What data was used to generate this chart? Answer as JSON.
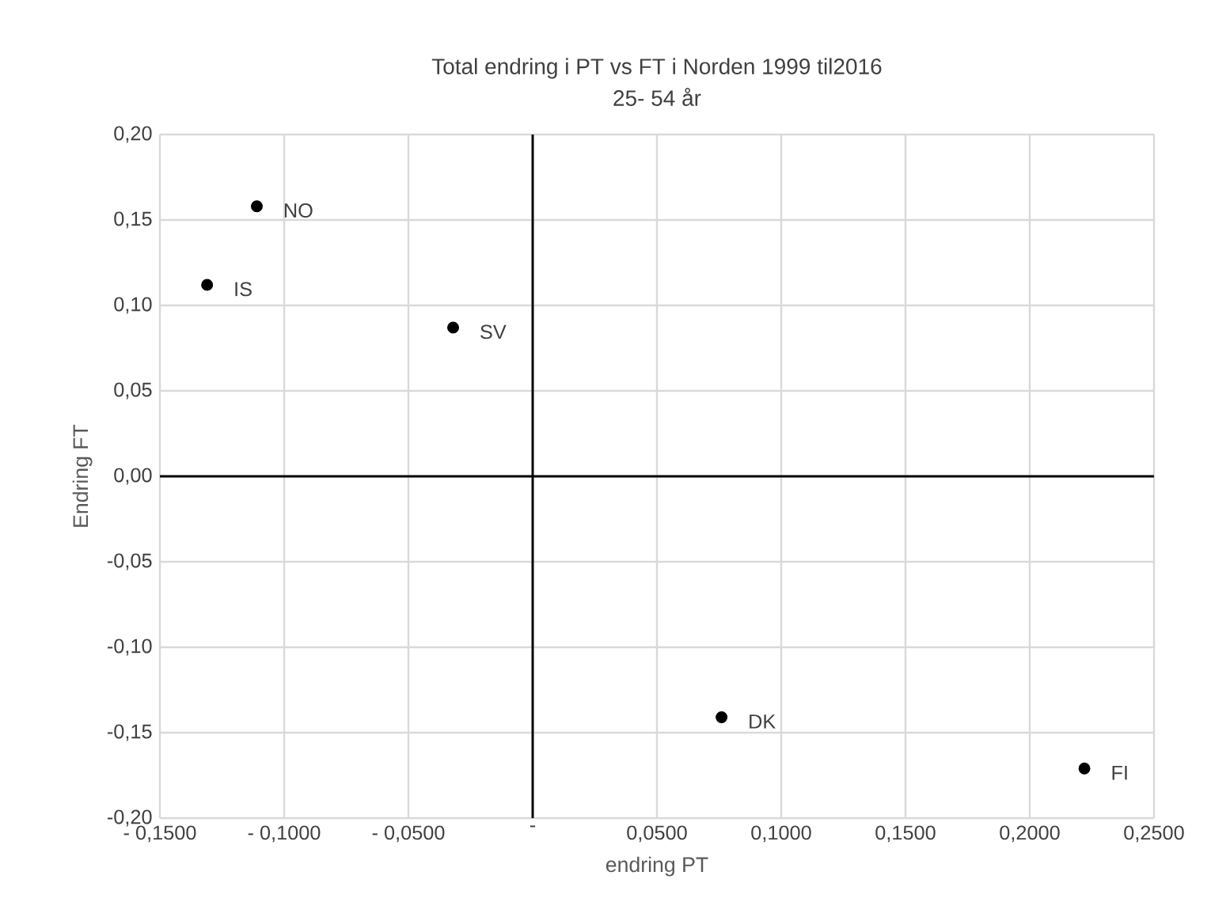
{
  "chart_data": {
    "type": "scatter",
    "title": "Total endring i PT vs FT i Norden 1999 til2016",
    "subtitle": "25- 54 år",
    "xlabel": "endring PT",
    "ylabel": "Endring FT",
    "x": [
      -0.111,
      -0.131,
      -0.032,
      0.076,
      0.222
    ],
    "values": [
      0.158,
      0.112,
      0.087,
      -0.141,
      -0.171
    ],
    "color": "#000000",
    "marker": "circle",
    "grid": true,
    "xlim": [
      -0.15,
      0.25
    ],
    "ylim": [
      -0.2,
      0.2
    ],
    "xticks": [
      {
        "value": -0.15,
        "label": "- 0,1500"
      },
      {
        "value": -0.1,
        "label": "- 0,1000"
      },
      {
        "value": -0.05,
        "label": "- 0,0500"
      },
      {
        "value": 0,
        "label": "-"
      },
      {
        "value": 0.05,
        "label": "0,0500"
      },
      {
        "value": 0.1,
        "label": "0,1000"
      },
      {
        "value": 0.15,
        "label": "0,1500"
      },
      {
        "value": 0.2,
        "label": "0,2000"
      },
      {
        "value": 0.25,
        "label": "0,2500"
      }
    ],
    "yticks": [
      {
        "value": -0.2,
        "label": "-0,20"
      },
      {
        "value": -0.15,
        "label": "-0,15"
      },
      {
        "value": -0.1,
        "label": "-0,10"
      },
      {
        "value": -0.05,
        "label": "-0,05"
      },
      {
        "value": 0,
        "label": "0,00"
      },
      {
        "value": 0.05,
        "label": "0,05"
      },
      {
        "value": 0.1,
        "label": "0,10"
      },
      {
        "value": 0.15,
        "label": "0,15"
      },
      {
        "value": 0.2,
        "label": "0,20"
      }
    ],
    "annotations": [
      {
        "text": "NO",
        "x": -0.111,
        "y": 0.158
      },
      {
        "text": "IS",
        "x": -0.131,
        "y": 0.112
      },
      {
        "text": "SV",
        "x": -0.032,
        "y": 0.087
      },
      {
        "text": "DK",
        "x": 0.076,
        "y": -0.141
      },
      {
        "text": "FI",
        "x": 0.222,
        "y": -0.171
      }
    ]
  }
}
